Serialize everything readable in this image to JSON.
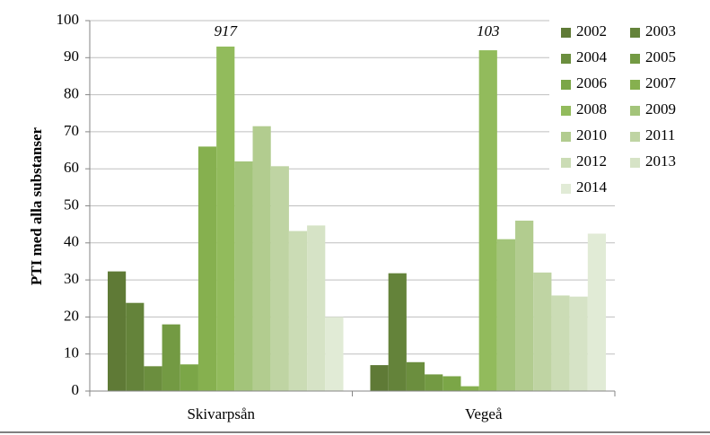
{
  "chart_data": {
    "type": "bar",
    "y_label": "PTI med alla substanser",
    "categories": [
      "Skivarpsån",
      "Vegeå"
    ],
    "annotations": [
      "917",
      "103"
    ],
    "ylim": [
      0,
      100
    ],
    "yticks": [
      0,
      10,
      20,
      30,
      40,
      50,
      60,
      70,
      80,
      90,
      100
    ],
    "grid": true,
    "series": [
      {
        "name": "2002",
        "color": "#5f7a36",
        "values": [
          32.3,
          7
        ]
      },
      {
        "name": "2003",
        "color": "#64833a",
        "values": [
          23.8,
          31.8
        ]
      },
      {
        "name": "2004",
        "color": "#6b8e3e",
        "values": [
          6.7,
          7.8
        ]
      },
      {
        "name": "2005",
        "color": "#739a43",
        "values": [
          18,
          4.5
        ]
      },
      {
        "name": "2006",
        "color": "#7ba647",
        "values": [
          7.2,
          4
        ]
      },
      {
        "name": "2007",
        "color": "#86b04f",
        "values": [
          66,
          1.3
        ]
      },
      {
        "name": "2008",
        "color": "#92bb5c",
        "values": [
          93,
          92
        ]
      },
      {
        "name": "2009",
        "color": "#a3c47a",
        "values": [
          62,
          41
        ]
      },
      {
        "name": "2010",
        "color": "#b2cc8f",
        "values": [
          71.5,
          46
        ]
      },
      {
        "name": "2011",
        "color": "#bfd4a3",
        "values": [
          60.7,
          32
        ]
      },
      {
        "name": "2012",
        "color": "#cbdcb5",
        "values": [
          43.2,
          25.8
        ]
      },
      {
        "name": "2013",
        "color": "#d6e3c6",
        "values": [
          44.7,
          25.5
        ]
      },
      {
        "name": "2014",
        "color": "#e1ebd6",
        "values": [
          20,
          42.5
        ]
      }
    ]
  }
}
